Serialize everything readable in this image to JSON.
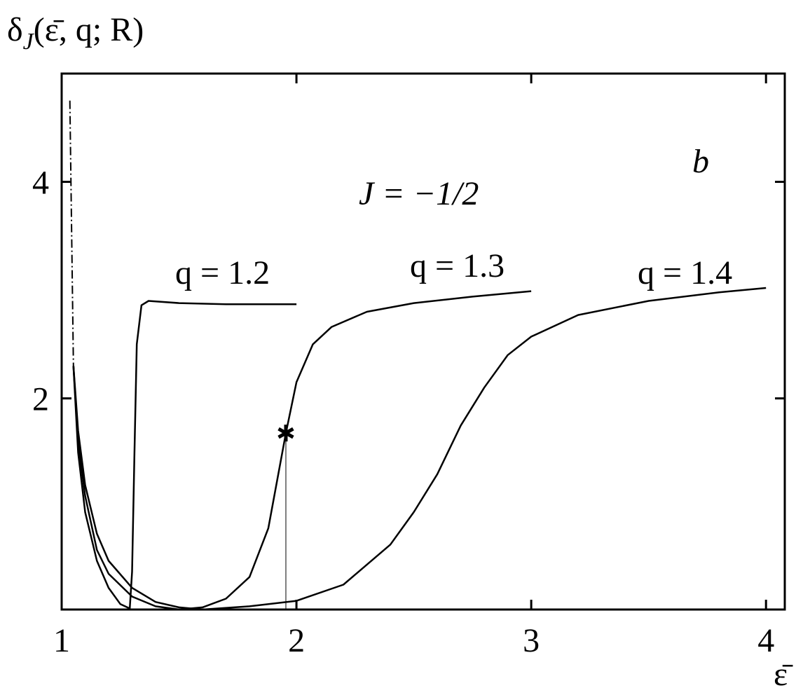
{
  "chart_data": {
    "type": "line",
    "ylabel": {
      "symbol": "δ",
      "subscript": "J",
      "args": "(ε̄, q; R)"
    },
    "xlabel": "ε̄",
    "annotations": [
      "J = −1/2",
      "b"
    ],
    "xlim": [
      1,
      4.08
    ],
    "ylim": [
      0.05,
      5
    ],
    "xticks": [
      1,
      2,
      3,
      4
    ],
    "yticks": [
      2,
      4
    ],
    "series": [
      {
        "name": "q = 1.2",
        "color": "#000000",
        "x": [
          1.05,
          1.07,
          1.1,
          1.15,
          1.2,
          1.25,
          1.29,
          1.3,
          1.31,
          1.32,
          1.34,
          1.37,
          1.5,
          1.7,
          2.0
        ],
        "values": [
          2.3,
          1.5,
          0.95,
          0.5,
          0.25,
          0.1,
          0.06,
          0.4,
          1.5,
          2.5,
          2.86,
          2.9,
          2.88,
          2.87,
          2.87
        ]
      },
      {
        "name": "q = 1.3",
        "color": "#000000",
        "x": [
          1.05,
          1.07,
          1.1,
          1.15,
          1.2,
          1.3,
          1.4,
          1.5,
          1.6,
          1.7,
          1.8,
          1.88,
          1.955,
          2.0,
          2.07,
          2.15,
          2.3,
          2.5,
          2.75,
          3.0
        ],
        "values": [
          2.3,
          1.6,
          1.1,
          0.6,
          0.38,
          0.17,
          0.08,
          0.05,
          0.07,
          0.15,
          0.35,
          0.8,
          1.68,
          2.15,
          2.5,
          2.66,
          2.8,
          2.88,
          2.94,
          2.99
        ]
      },
      {
        "name": "q = 1.4",
        "color": "#000000",
        "x": [
          1.05,
          1.07,
          1.1,
          1.15,
          1.2,
          1.3,
          1.4,
          1.5,
          1.6,
          1.8,
          2.0,
          2.2,
          2.4,
          2.5,
          2.6,
          2.7,
          2.8,
          2.9,
          3.0,
          3.2,
          3.5,
          3.8,
          4.0
        ],
        "values": [
          2.3,
          1.7,
          1.2,
          0.75,
          0.5,
          0.25,
          0.12,
          0.07,
          0.05,
          0.08,
          0.13,
          0.28,
          0.65,
          0.95,
          1.3,
          1.75,
          2.1,
          2.4,
          2.57,
          2.77,
          2.9,
          2.98,
          3.02
        ]
      },
      {
        "color": "#000000",
        "dash": true,
        "x": [
          1.035,
          1.05
        ],
        "values": [
          4.75,
          2.3
        ]
      }
    ],
    "marker": {
      "x": 1.955,
      "y": 1.68
    }
  }
}
